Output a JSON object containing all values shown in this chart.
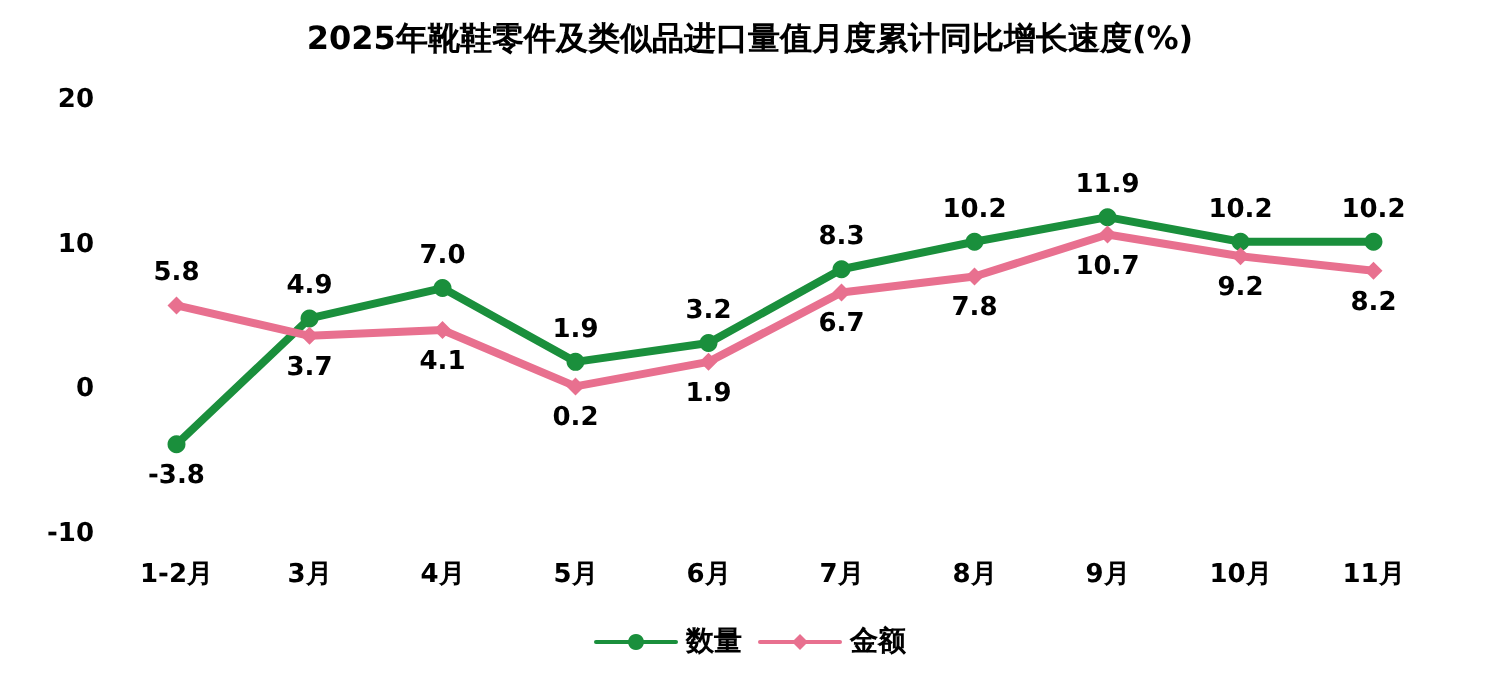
{
  "chart_data": {
    "type": "line",
    "title": "2025年靴鞋零件及类似品进口量值月度累计同比增长速度(%)",
    "categories": [
      "1-2月",
      "3月",
      "4月",
      "5月",
      "6月",
      "7月",
      "8月",
      "9月",
      "10月",
      "11月"
    ],
    "series": [
      {
        "name": "数量",
        "color": "#1a8f3c",
        "marker": "circle",
        "values": [
          -3.8,
          4.9,
          7.0,
          1.9,
          3.2,
          8.3,
          10.2,
          11.9,
          10.2,
          10.2
        ],
        "value_labels": [
          "-3.8",
          "4.9",
          "7.0",
          "1.9",
          "3.2",
          "8.3",
          "10.2",
          "11.9",
          "10.2",
          "10.2"
        ]
      },
      {
        "name": "金额",
        "color": "#e8708f",
        "marker": "diamond",
        "values": [
          5.8,
          3.7,
          4.1,
          0.2,
          1.9,
          6.7,
          7.8,
          10.7,
          9.2,
          8.2
        ],
        "value_labels": [
          "5.8",
          "3.7",
          "4.1",
          "0.2",
          "1.9",
          "6.7",
          "7.8",
          "10.7",
          "9.2",
          "8.2"
        ]
      }
    ],
    "ylim": [
      -10,
      20
    ],
    "yticks": [
      -10,
      0,
      10,
      20
    ],
    "grid": false,
    "legend": "bottom",
    "line_style": "solid"
  }
}
